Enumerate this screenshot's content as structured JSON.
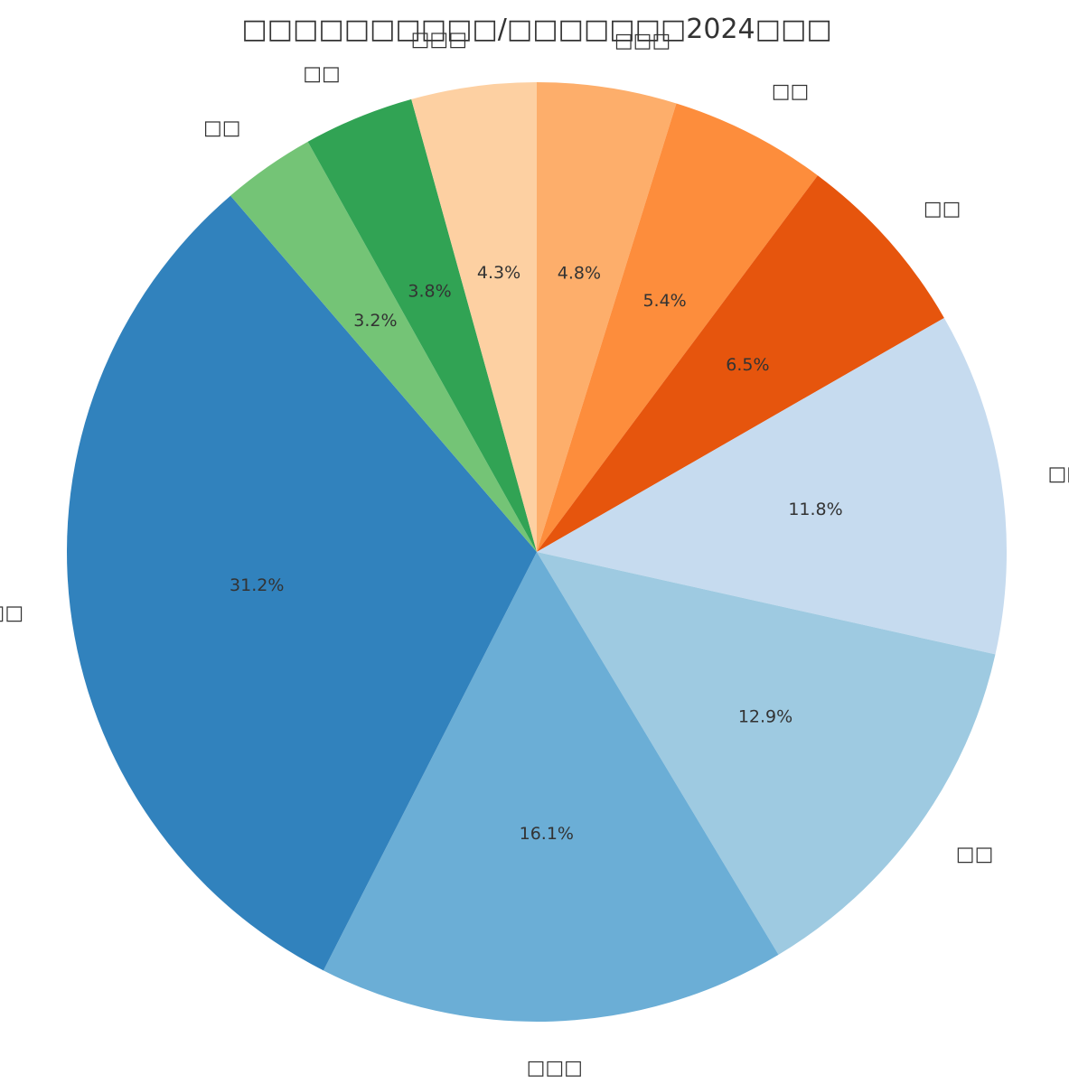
{
  "chart_data": {
    "type": "pie",
    "title": "□□□□□□□□□□/□□□□□□□2024□□□",
    "start_angle_deg": 90,
    "direction": "clockwise",
    "slices": [
      {
        "label": "□□□",
        "value": 4.8,
        "pct_label": "4.8%",
        "color": "#fdae6b"
      },
      {
        "label": "□□",
        "value": 5.4,
        "pct_label": "5.4%",
        "color": "#fd8d3c"
      },
      {
        "label": "□□",
        "value": 6.5,
        "pct_label": "6.5%",
        "color": "#e6550d"
      },
      {
        "label": "□□",
        "value": 11.8,
        "pct_label": "11.8%",
        "color": "#c6dbef"
      },
      {
        "label": "□□",
        "value": 12.9,
        "pct_label": "12.9%",
        "color": "#9ecae1"
      },
      {
        "label": "□□□",
        "value": 16.1,
        "pct_label": "16.1%",
        "color": "#6baed6"
      },
      {
        "label": "□□",
        "value": 31.2,
        "pct_label": "31.2%",
        "color": "#3182bd"
      },
      {
        "label": "□□",
        "value": 3.2,
        "pct_label": "3.2%",
        "color": "#74c476"
      },
      {
        "label": "□□",
        "value": 3.8,
        "pct_label": "3.8%",
        "color": "#31a354"
      },
      {
        "label": "□□□",
        "value": 4.3,
        "pct_label": "4.3%",
        "color": "#fdd0a2"
      }
    ]
  }
}
